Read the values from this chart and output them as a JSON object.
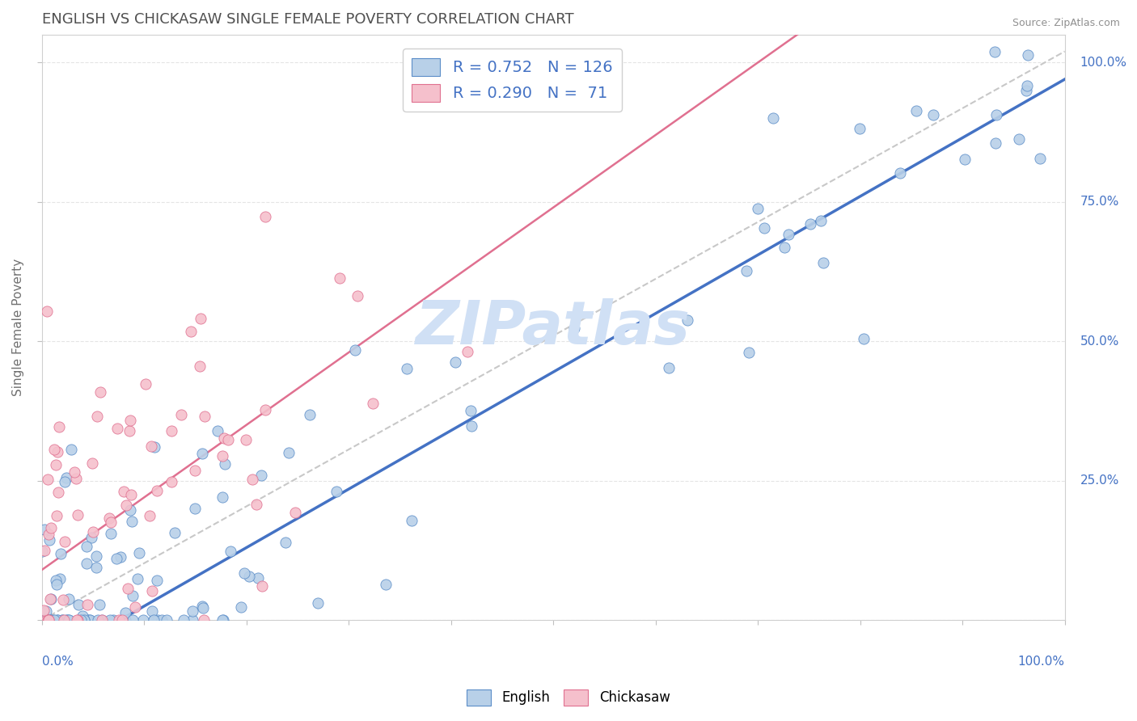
{
  "title": "ENGLISH VS CHICKASAW SINGLE FEMALE POVERTY CORRELATION CHART",
  "source": "Source: ZipAtlas.com",
  "ylabel": "Single Female Poverty",
  "english_R": 0.752,
  "english_N": 126,
  "chickasaw_R": 0.29,
  "chickasaw_N": 71,
  "english_color": "#b8d0e8",
  "english_edge_color": "#5b8dc8",
  "english_line_color": "#4472c4",
  "chickasaw_color": "#f5c0cc",
  "chickasaw_edge_color": "#e07090",
  "chickasaw_line_color": "#e07090",
  "ref_line_color": "#c8c8c8",
  "watermark": "ZIPatlas",
  "watermark_color": "#d0e0f5",
  "title_color": "#505050",
  "axis_label_color": "#4472c4",
  "legend_text_color": "#4472c4",
  "background_color": "#ffffff",
  "grid_color": "#e5e5e5",
  "title_fontsize": 13,
  "tick_label_fontsize": 11,
  "axis_label_fontsize": 11,
  "legend_fontsize": 14,
  "source_fontsize": 9
}
